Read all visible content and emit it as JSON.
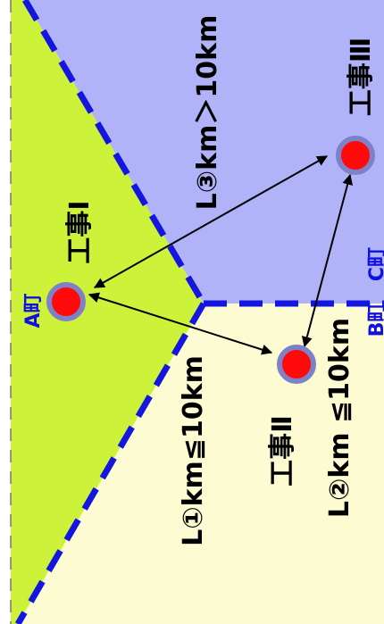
{
  "diagram": {
    "towns": {
      "a": "A町",
      "b": "B町",
      "c": "C町"
    },
    "sites": {
      "one": "工事Ⅰ",
      "two": "工事Ⅱ",
      "three": "工事Ⅲ"
    },
    "distances": {
      "l1": "L①km≦10km",
      "l2": "L②km ≦10km",
      "l3": "L③km＞10km"
    },
    "colors": {
      "town_a": "#ccf23a",
      "town_b": "#fdfbd2",
      "town_c": "#b0b3f8",
      "boundary": "#1515e0",
      "site_fill": "#ff0a0a",
      "site_ring": "#7e80c8",
      "label_blue": "#1010e0",
      "arrow": "#000000"
    }
  }
}
